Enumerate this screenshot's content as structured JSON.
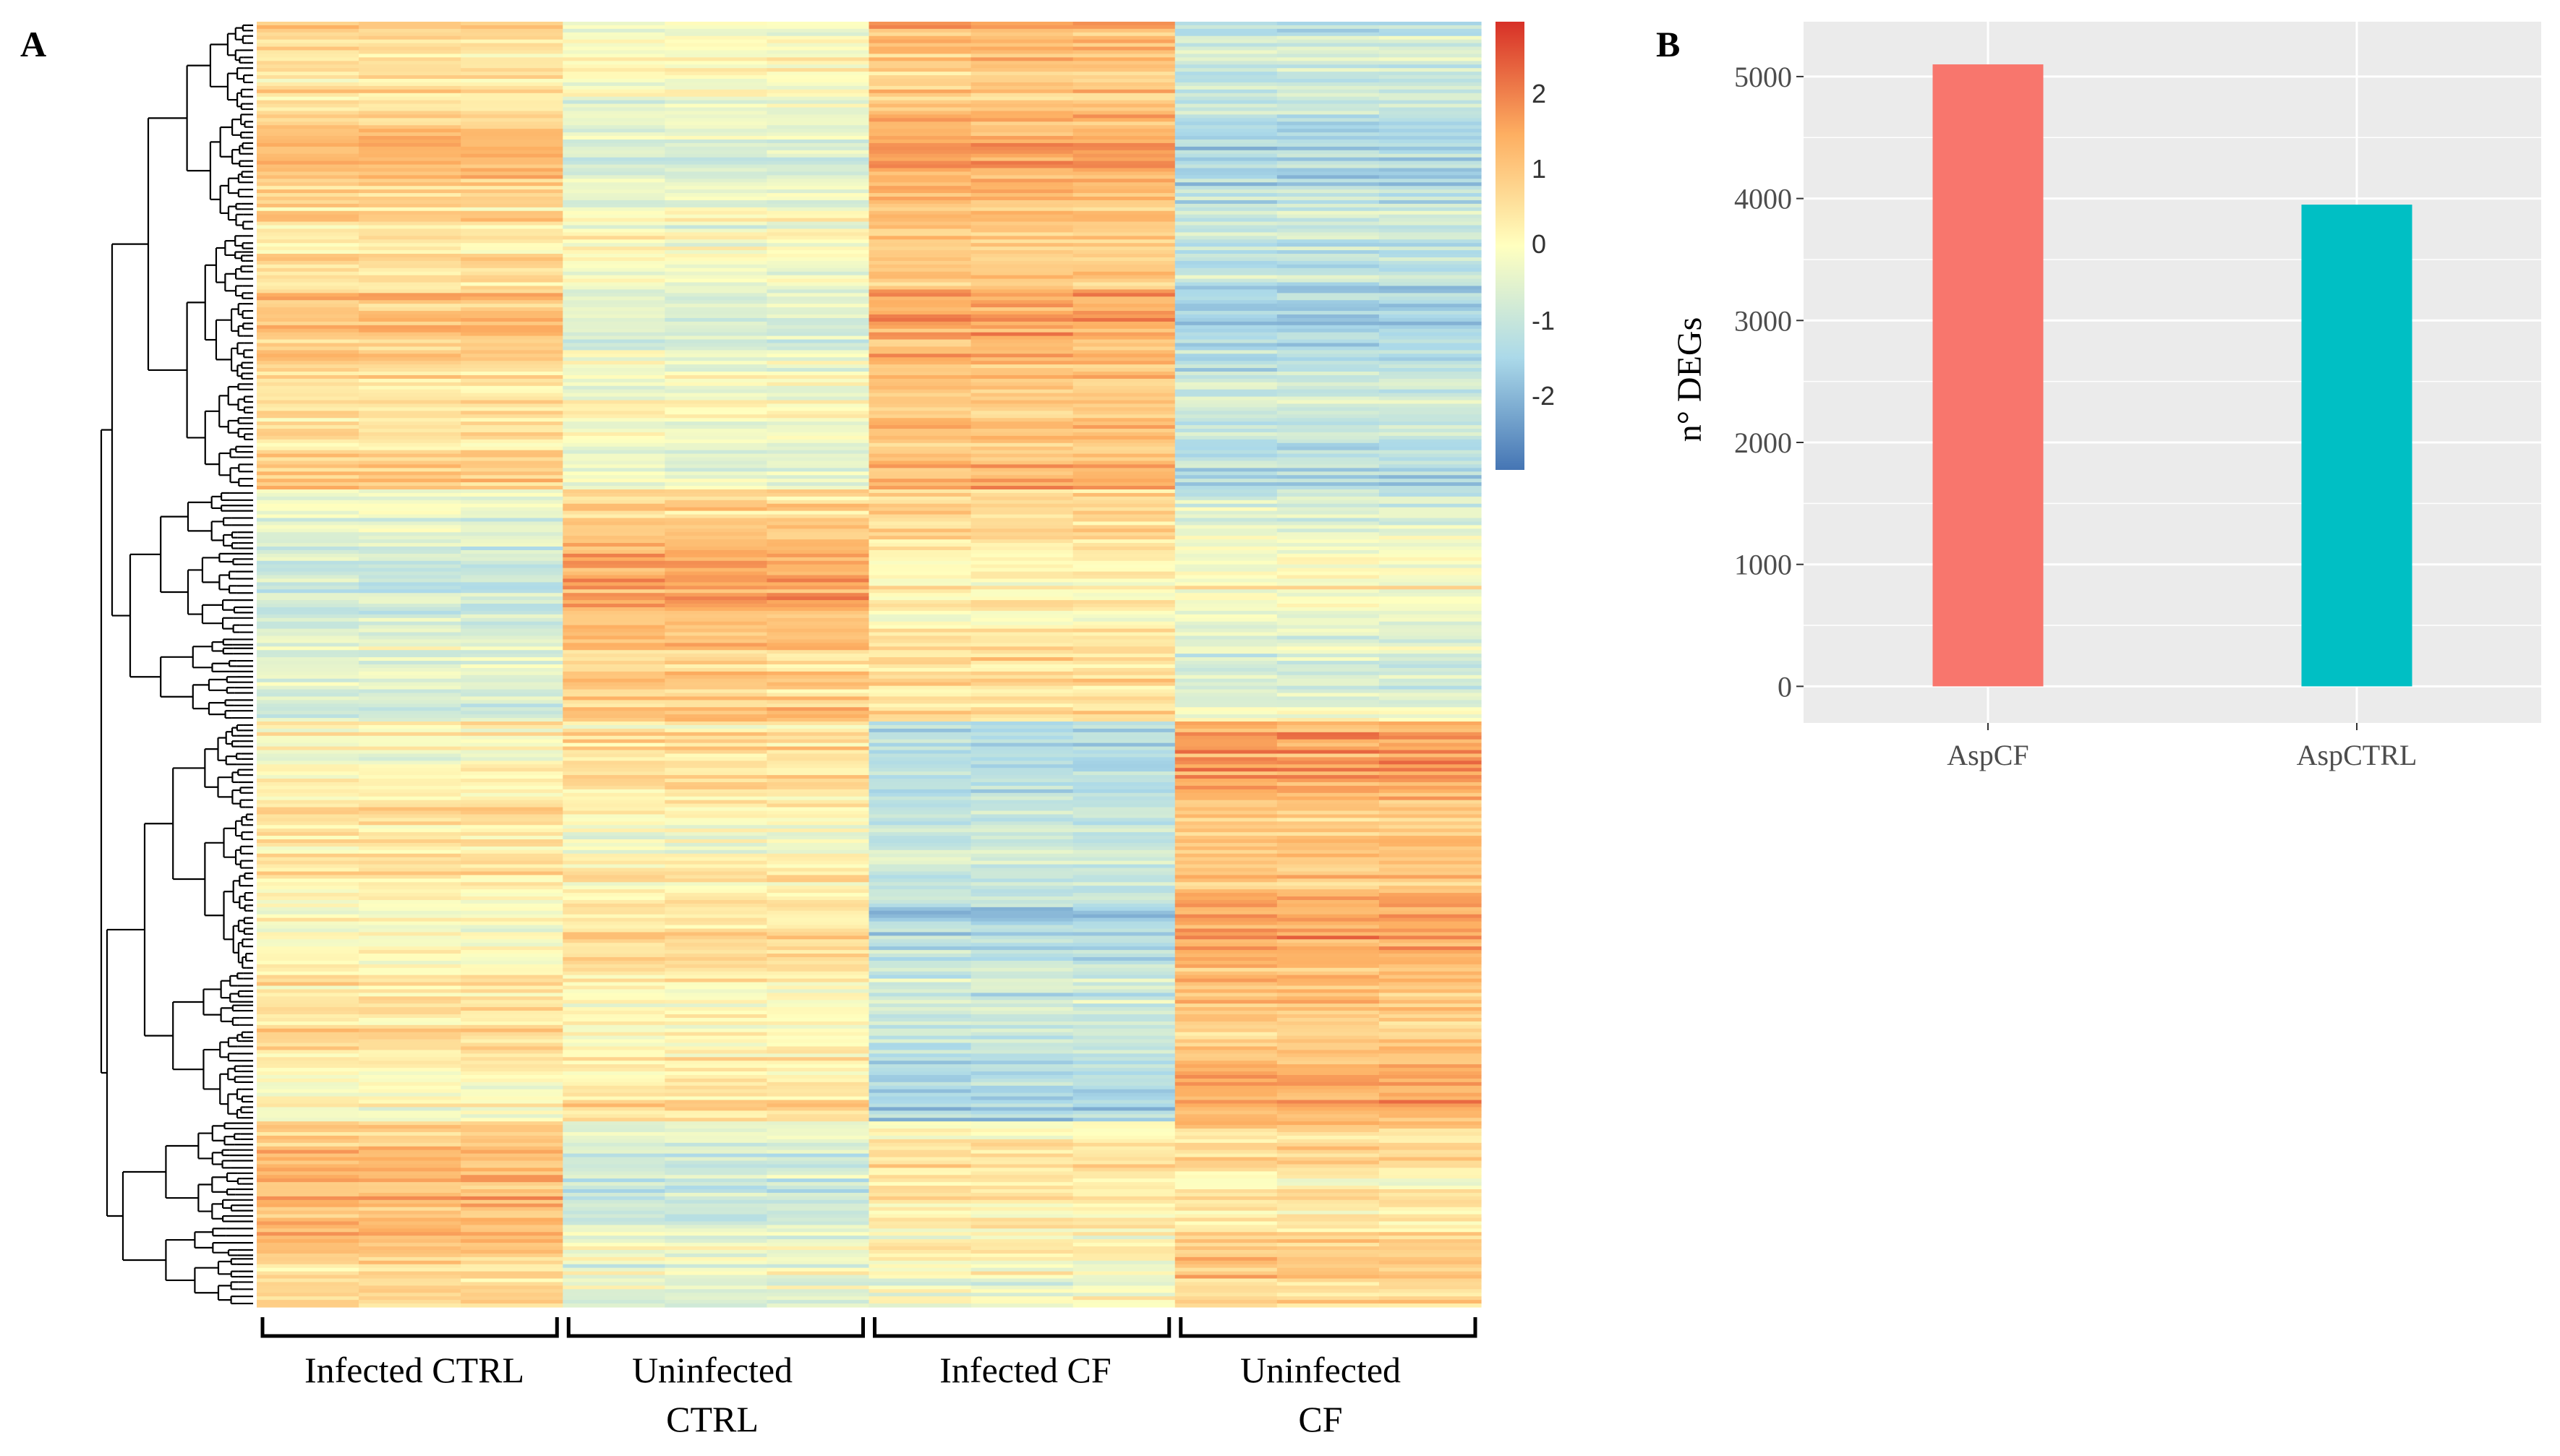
{
  "panels": {
    "a": "A",
    "b": "B"
  },
  "chart_data": [
    {
      "type": "heatmap",
      "panel": "A",
      "description_groups": [
        {
          "label_lines": [
            "Infected CTRL"
          ],
          "replicates": 3
        },
        {
          "label_lines": [
            "Uninfected",
            "CTRL"
          ],
          "replicates": 3
        },
        {
          "label_lines": [
            "Infected CF"
          ],
          "replicates": 3
        },
        {
          "label_lines": [
            "Uninfected",
            "CF"
          ],
          "replicates": 3
        }
      ],
      "row_clusters": [
        {
          "row_fraction": 0.365,
          "group_means": [
            0.8,
            -0.4,
            1.3,
            -1.2
          ]
        },
        {
          "row_fraction": 0.18,
          "group_means": [
            -0.7,
            1.1,
            0.4,
            -0.4
          ]
        },
        {
          "row_fraction": 0.31,
          "group_means": [
            0.3,
            0.3,
            -1.1,
            1.3
          ]
        },
        {
          "row_fraction": 0.145,
          "group_means": [
            1.1,
            -0.6,
            0.2,
            0.6
          ]
        }
      ],
      "color_scale": {
        "min": -3,
        "max": 3,
        "ticks": [
          "2",
          "1",
          "0",
          "-1",
          "-2"
        ],
        "colors": [
          "#4575b4",
          "#abd9e9",
          "#ffffbf",
          "#fdae61",
          "#d73027"
        ]
      },
      "dendrogram": true
    },
    {
      "type": "bar",
      "panel": "B",
      "categories": [
        "AspCF",
        "AspCTRL"
      ],
      "values": [
        5100,
        3950
      ],
      "colors": [
        "#F8766D",
        "#00BFC4"
      ],
      "ylabel": "n° DEGs",
      "xlabel": "",
      "ylim": [
        -300,
        5450
      ],
      "yticks": [
        "0",
        "1000",
        "2000",
        "3000",
        "4000",
        "5000"
      ],
      "grid": true
    }
  ]
}
